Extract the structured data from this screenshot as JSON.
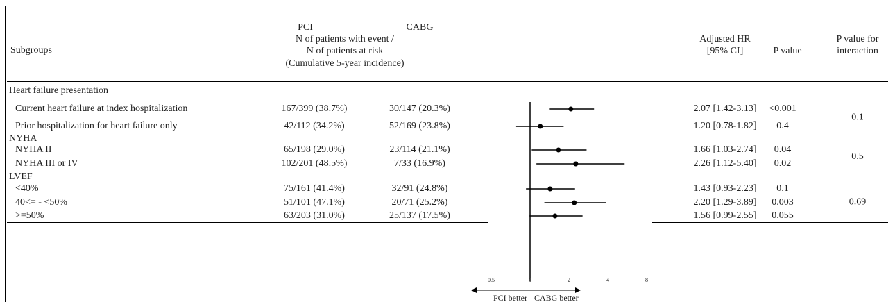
{
  "chart_data": {
    "type": "forest",
    "headers": {
      "subgroups": "Subgroups",
      "pci": "PCI",
      "cabg": "CABG",
      "events": "N of patients with event /",
      "risk": "N of patients at risk",
      "incidence": "(Cumulative 5-year incidence)",
      "hr": "Adjusted HR",
      "ci": "[95% CI]",
      "p": "P value",
      "interaction_1": "P value for",
      "interaction_2": "interaction"
    },
    "groups": [
      {
        "label": "Heart failure presentation",
        "interaction": "0.1",
        "rows": [
          {
            "subgroup": "Current heart failure at index hospitalization",
            "pci": "167/399 (38.7%)",
            "cabg": "30/147 (20.3%)",
            "hr": 2.07,
            "lower": 1.42,
            "upper": 3.13,
            "hr_label": "2.07 [1.42-3.13]",
            "p": "<0.001"
          },
          {
            "subgroup": "Prior hospitalization for heart failure only",
            "pci": "42/112 (34.2%)",
            "cabg": "52/169 (23.8%)",
            "hr": 1.2,
            "lower": 0.78,
            "upper": 1.82,
            "hr_label": "1.20 [0.78-1.82]",
            "p": "0.4"
          }
        ]
      },
      {
        "label": "NYHA",
        "interaction": "0.5",
        "rows": [
          {
            "subgroup": "NYHA II",
            "pci": "65/198 (29.0%)",
            "cabg": "23/114 (21.1%)",
            "hr": 1.66,
            "lower": 1.03,
            "upper": 2.74,
            "hr_label": "1.66 [1.03-2.74]",
            "p": "0.04"
          },
          {
            "subgroup": "NYHA III or IV",
            "pci": "102/201 (48.5%)",
            "cabg": "7/33 (16.9%)",
            "hr": 2.26,
            "lower": 1.12,
            "upper": 5.4,
            "hr_label": "2.26 [1.12-5.40]",
            "p": "0.02"
          }
        ]
      },
      {
        "label": "LVEF",
        "interaction": "0.69",
        "rows": [
          {
            "subgroup": "<40%",
            "pci": "75/161 (41.4%)",
            "cabg": "32/91 (24.8%)",
            "hr": 1.43,
            "lower": 0.93,
            "upper": 2.23,
            "hr_label": "1.43 [0.93-2.23]",
            "p": "0.1"
          },
          {
            "subgroup": "40<= - <50%",
            "pci": "51/101 (47.1%)",
            "cabg": "20/71 (25.2%)",
            "hr": 2.2,
            "lower": 1.29,
            "upper": 3.89,
            "hr_label": "2.20 [1.29-3.89]",
            "p": "0.003"
          },
          {
            "subgroup": ">=50%",
            "pci": "63/203 (31.0%)",
            "cabg": "25/137 (17.5%)",
            "hr": 1.56,
            "lower": 0.99,
            "upper": 2.55,
            "hr_label": "1.56 [0.99-2.55]",
            "p": "0.055"
          }
        ]
      }
    ],
    "reference": 1,
    "log_x": true,
    "xlim": [
      0.5,
      8
    ],
    "xticks": [
      0.5,
      1,
      2,
      4,
      8
    ],
    "left_label": "PCI better",
    "right_label": "CABG better",
    "color": "#000000"
  }
}
